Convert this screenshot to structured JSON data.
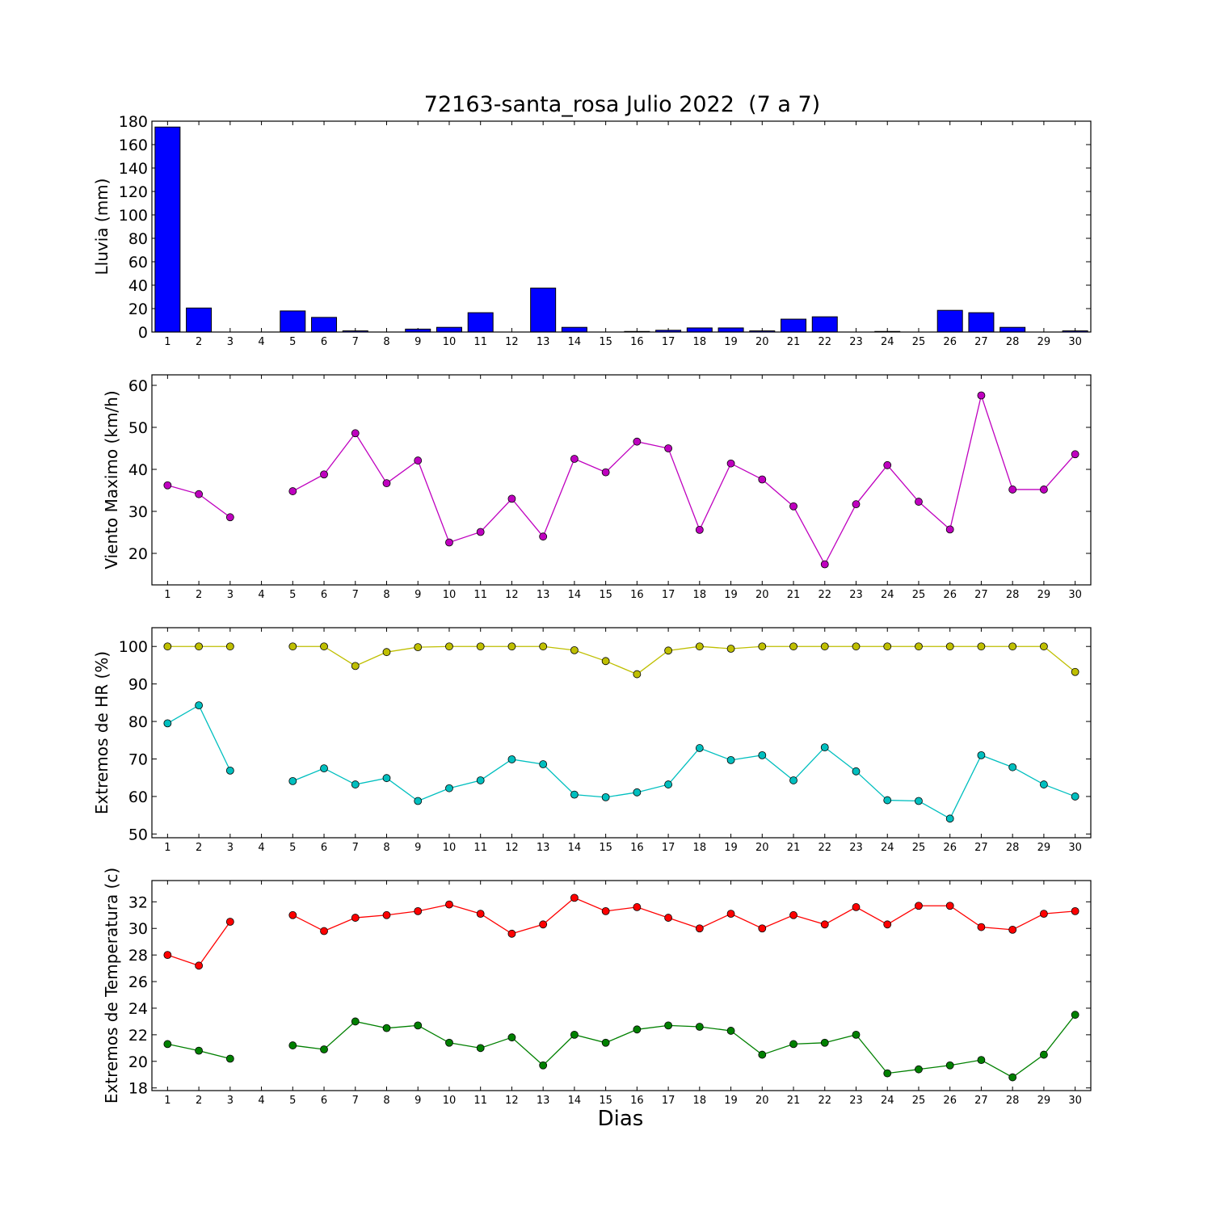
{
  "title": "72163-santa_rosa Julio 2022  (7 a 7)",
  "xlabel": "Dias",
  "days": [
    1,
    2,
    3,
    4,
    5,
    6,
    7,
    8,
    9,
    10,
    11,
    12,
    13,
    14,
    15,
    16,
    17,
    18,
    19,
    20,
    21,
    22,
    23,
    24,
    25,
    26,
    27,
    28,
    29,
    30
  ],
  "chart_data": [
    {
      "type": "bar",
      "ylabel": "Lluvia (mm)",
      "ylim": [
        0,
        180
      ],
      "yticks": [
        0,
        20,
        40,
        60,
        80,
        100,
        120,
        140,
        160,
        180
      ],
      "categories": [
        1,
        2,
        3,
        4,
        5,
        6,
        7,
        8,
        9,
        10,
        11,
        12,
        13,
        14,
        15,
        16,
        17,
        18,
        19,
        20,
        21,
        22,
        23,
        24,
        25,
        26,
        27,
        28,
        29,
        30
      ],
      "series": [
        {
          "color": "#0000ff",
          "values": [
            175,
            20.5,
            0,
            0,
            18,
            12.5,
            1,
            0,
            2.5,
            4,
            16.5,
            0,
            37.5,
            4,
            0,
            0.5,
            1.5,
            3.5,
            3.5,
            1,
            11,
            13,
            0,
            0.5,
            0,
            18.5,
            16.5,
            4,
            0,
            1
          ]
        }
      ]
    },
    {
      "type": "line",
      "ylabel": "Viento Maximo (km/h)",
      "ylim": [
        12.5,
        62.5
      ],
      "yticks": [
        20,
        30,
        40,
        50,
        60
      ],
      "x": [
        1,
        2,
        3,
        4,
        5,
        6,
        7,
        8,
        9,
        10,
        11,
        12,
        13,
        14,
        15,
        16,
        17,
        18,
        19,
        20,
        21,
        22,
        23,
        24,
        25,
        26,
        27,
        28,
        29,
        30
      ],
      "series": [
        {
          "color": "#bf00bf",
          "values": [
            36.2,
            34.1,
            28.6,
            null,
            34.8,
            38.8,
            48.6,
            36.7,
            42.1,
            22.6,
            25.1,
            33,
            24,
            42.5,
            39.3,
            46.6,
            45,
            25.6,
            41.4,
            37.6,
            31.2,
            17.4,
            31.7,
            41,
            32.3,
            25.7,
            57.6,
            35.2,
            35.2,
            43.6
          ]
        }
      ]
    },
    {
      "type": "line",
      "ylabel": "Extremos de HR (%)",
      "ylim": [
        49,
        105
      ],
      "yticks": [
        50,
        60,
        70,
        80,
        90,
        100
      ],
      "x": [
        1,
        2,
        3,
        4,
        5,
        6,
        7,
        8,
        9,
        10,
        11,
        12,
        13,
        14,
        15,
        16,
        17,
        18,
        19,
        20,
        21,
        22,
        23,
        24,
        25,
        26,
        27,
        28,
        29,
        30
      ],
      "series": [
        {
          "color": "#bfbf00",
          "values": [
            100,
            100,
            100,
            null,
            100,
            100,
            94.8,
            98.5,
            99.8,
            100,
            100,
            100,
            100,
            99,
            96.1,
            92.6,
            98.9,
            100,
            99.4,
            100,
            100,
            100,
            100,
            100,
            100,
            100,
            100,
            100,
            100,
            93.2
          ]
        },
        {
          "color": "#00bfbf",
          "values": [
            79.5,
            84.3,
            66.9,
            null,
            64.1,
            67.5,
            63.2,
            64.9,
            58.8,
            62.2,
            64.3,
            69.9,
            68.6,
            60.5,
            59.8,
            61.1,
            63.2,
            72.9,
            69.7,
            71,
            64.3,
            73.1,
            66.7,
            59,
            58.8,
            54.1,
            71,
            67.8,
            63.2,
            60
          ]
        }
      ]
    },
    {
      "type": "line",
      "ylabel": "Extremos de Temperatura (c)",
      "ylim": [
        17.8,
        33.6
      ],
      "yticks": [
        18,
        20,
        22,
        24,
        26,
        28,
        30,
        32
      ],
      "x": [
        1,
        2,
        3,
        4,
        5,
        6,
        7,
        8,
        9,
        10,
        11,
        12,
        13,
        14,
        15,
        16,
        17,
        18,
        19,
        20,
        21,
        22,
        23,
        24,
        25,
        26,
        27,
        28,
        29,
        30
      ],
      "series": [
        {
          "color": "#ff0000",
          "values": [
            28,
            27.2,
            30.5,
            null,
            31,
            29.8,
            30.8,
            31,
            31.3,
            31.8,
            31.1,
            29.6,
            30.3,
            32.3,
            31.3,
            31.6,
            30.8,
            30,
            31.1,
            30,
            31,
            30.3,
            31.6,
            30.3,
            31.7,
            31.7,
            30.1,
            29.9,
            31.1,
            31.3
          ]
        },
        {
          "color": "#008000",
          "values": [
            21.3,
            20.8,
            20.2,
            null,
            21.2,
            20.9,
            23,
            22.5,
            22.7,
            21.4,
            21,
            21.8,
            19.7,
            22,
            21.4,
            22.4,
            22.7,
            22.6,
            22.3,
            20.5,
            21.3,
            21.4,
            22,
            19.1,
            19.4,
            19.7,
            20.1,
            18.8,
            20.5,
            23.5
          ]
        }
      ]
    }
  ]
}
